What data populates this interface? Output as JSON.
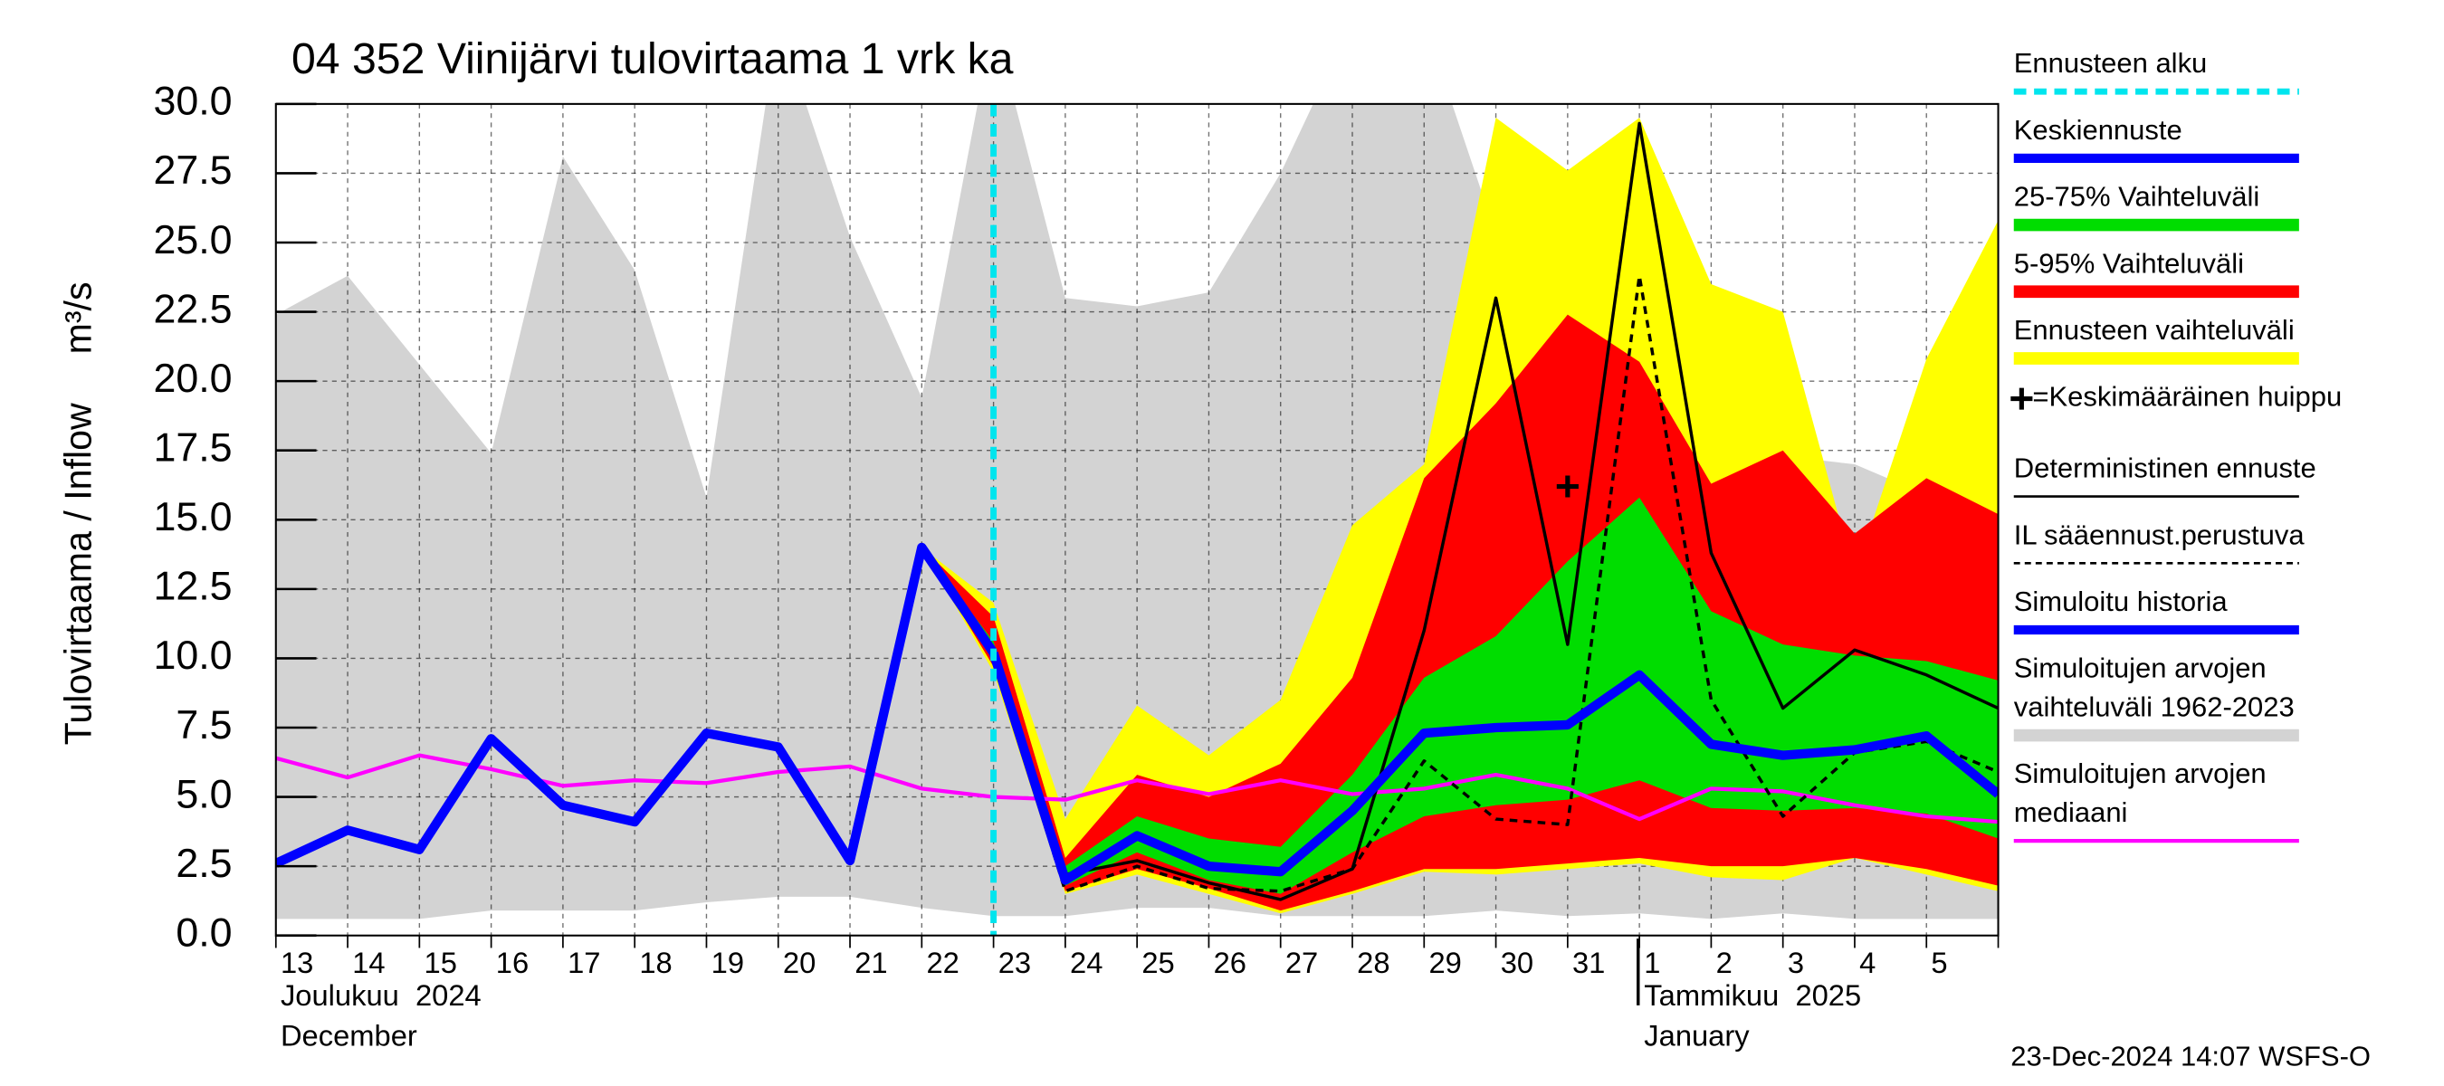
{
  "chart_data": {
    "type": "line",
    "title": "04 352 Viinijärvi tulovirtaama 1 vrk ka",
    "y_label": "Tulovirtaama / Inflow",
    "y_unit": "m³/s",
    "month_labels": [
      {
        "category": "13",
        "lines": [
          "Joulukuu  2024",
          "December"
        ]
      },
      {
        "category": "1",
        "lines": [
          "Tammikuu  2025",
          "January"
        ]
      }
    ],
    "footer": "23-Dec-2024 14:07 WSFS-O",
    "categories": [
      "13",
      "14",
      "15",
      "16",
      "17",
      "18",
      "19",
      "20",
      "21",
      "22",
      "23",
      "24",
      "25",
      "26",
      "27",
      "28",
      "29",
      "30",
      "31",
      "1",
      "2",
      "3",
      "4",
      "5",
      null
    ],
    "ylim": [
      0,
      30
    ],
    "yticks": [
      {
        "value": 0,
        "label": "0.0"
      },
      {
        "value": 2.5,
        "label": "2.5"
      },
      {
        "value": 5,
        "label": "5.0"
      },
      {
        "value": 7.5,
        "label": "7.5"
      },
      {
        "value": 10,
        "label": "10.0"
      },
      {
        "value": 12.5,
        "label": "12.5"
      },
      {
        "value": 15,
        "label": "15.0"
      },
      {
        "value": 17.5,
        "label": "17.5"
      },
      {
        "value": 20,
        "label": "20.0"
      },
      {
        "value": 22.5,
        "label": "22.5"
      },
      {
        "value": 25,
        "label": "25.0"
      },
      {
        "value": 27.5,
        "label": "27.5"
      },
      {
        "value": 30,
        "label": "30.0"
      }
    ],
    "grid": true,
    "forecast_start": {
      "name": "Ennusteen alku",
      "color": "#00e5ee",
      "category": "23"
    },
    "series": [
      {
        "name": "Simuloitujen arvojen vaihteluväli 1962-2023",
        "kind": "band",
        "color": "#d3d3d3",
        "legend_order": 9,
        "lower": [
          0.6,
          0.6,
          0.6,
          0.9,
          0.9,
          0.9,
          1.2,
          1.4,
          1.4,
          1.0,
          0.7,
          0.7,
          1.0,
          1.0,
          0.7,
          0.7,
          0.7,
          0.9,
          0.7,
          0.8,
          0.6,
          0.8,
          0.6,
          0.6,
          0.6
        ],
        "upper": [
          22.4,
          23.8,
          20.6,
          17.4,
          28.1,
          24.0,
          15.8,
          33,
          25.2,
          19.4,
          33,
          23.0,
          22.7,
          23.2,
          27.5,
          33,
          33,
          25.3,
          26.0,
          25.2,
          20.8,
          17.3,
          17.0,
          15.9,
          17.6
        ]
      },
      {
        "name": "Ennusteen vaihteluväli",
        "kind": "band",
        "color": "#ffff00",
        "legend_order": 4,
        "lower": [
          null,
          null,
          null,
          null,
          null,
          null,
          null,
          null,
          null,
          14.0,
          9.5,
          1.5,
          2.2,
          1.5,
          0.8,
          1.5,
          2.3,
          2.2,
          2.4,
          2.6,
          2.1,
          2.0,
          2.8,
          2.2,
          1.6
        ],
        "upper": [
          null,
          null,
          null,
          null,
          null,
          null,
          null,
          null,
          null,
          14.0,
          12.0,
          4.2,
          8.3,
          6.5,
          8.5,
          14.8,
          17.0,
          29.5,
          27.6,
          29.5,
          23.5,
          22.5,
          13.0,
          20.8,
          25.8
        ]
      },
      {
        "name": "5-95% Vaihteluväli",
        "kind": "band",
        "color": "#ff0000",
        "legend_order": 3,
        "lower": [
          null,
          null,
          null,
          null,
          null,
          null,
          null,
          null,
          null,
          14.0,
          9.7,
          1.6,
          2.4,
          1.7,
          0.9,
          1.6,
          2.4,
          2.4,
          2.6,
          2.8,
          2.5,
          2.5,
          2.8,
          2.4,
          1.8
        ],
        "upper": [
          null,
          null,
          null,
          null,
          null,
          null,
          null,
          null,
          null,
          14.0,
          11.5,
          2.8,
          5.8,
          5.0,
          6.2,
          9.3,
          16.5,
          19.2,
          22.4,
          20.7,
          16.3,
          17.5,
          14.5,
          16.5,
          15.2
        ]
      },
      {
        "name": "25-75% Vaihteluväli",
        "kind": "band",
        "color": "#00dd00",
        "legend_order": 2,
        "lower": [
          null,
          null,
          null,
          null,
          null,
          null,
          null,
          null,
          null,
          14.0,
          10.0,
          1.8,
          3.0,
          2.0,
          1.5,
          3.0,
          4.3,
          4.7,
          4.9,
          5.6,
          4.6,
          4.5,
          4.6,
          4.4,
          3.5
        ],
        "upper": [
          null,
          null,
          null,
          null,
          null,
          null,
          null,
          null,
          null,
          14.0,
          10.6,
          2.5,
          4.3,
          3.5,
          3.2,
          5.8,
          9.3,
          10.8,
          13.5,
          15.8,
          11.7,
          10.5,
          10.1,
          9.9,
          9.2
        ]
      },
      {
        "name": "Simuloitujen arvojen mediaani",
        "kind": "line",
        "color": "#ff00ff",
        "width": 2.5,
        "legend_order": 10,
        "values": [
          6.4,
          5.7,
          6.5,
          6.0,
          5.4,
          5.6,
          5.5,
          5.9,
          6.1,
          5.3,
          5.0,
          4.9,
          5.6,
          5.1,
          5.6,
          5.1,
          5.3,
          5.8,
          5.3,
          4.2,
          5.3,
          5.2,
          4.7,
          4.3,
          4.1
        ]
      },
      {
        "name": "Deterministinen ennuste",
        "kind": "line",
        "color": "#000000",
        "width": 2,
        "legend_order": 6,
        "values": [
          null,
          null,
          null,
          null,
          null,
          null,
          null,
          null,
          null,
          14.0,
          10.0,
          2.2,
          2.7,
          1.9,
          1.3,
          2.4,
          11.0,
          23.0,
          10.5,
          29.3,
          13.8,
          8.2,
          10.3,
          9.4,
          8.2
        ]
      },
      {
        "name": "IL sääennust.perustuva",
        "kind": "line",
        "color": "#000000",
        "width": 2,
        "dash": true,
        "legend_order": 7,
        "values": [
          null,
          null,
          null,
          null,
          null,
          null,
          null,
          null,
          null,
          14.0,
          10.0,
          1.6,
          2.5,
          1.7,
          1.6,
          2.4,
          6.3,
          4.2,
          4.0,
          23.8,
          8.5,
          4.3,
          6.6,
          7.0,
          5.9
        ]
      },
      {
        "name": "Simuloitu historia",
        "kind": "line",
        "color": "#0000ff",
        "width": 6,
        "legend_order": 8,
        "values": [
          2.6,
          3.8,
          3.1,
          7.1,
          4.7,
          4.1,
          7.3,
          6.8,
          2.7,
          14.0,
          10.2,
          null,
          null,
          null,
          null,
          null,
          null,
          null,
          null,
          null,
          null,
          null,
          null,
          null,
          null
        ]
      },
      {
        "name": "Keskiennuste",
        "kind": "line",
        "color": "#0000ff",
        "width": 6,
        "legend_order": 1,
        "values": [
          null,
          null,
          null,
          null,
          null,
          null,
          null,
          null,
          null,
          null,
          10.2,
          2.0,
          3.6,
          2.5,
          2.3,
          4.5,
          7.3,
          7.5,
          7.6,
          9.4,
          6.9,
          6.5,
          6.7,
          7.2,
          5.1
        ]
      },
      {
        "name": "=Keskimääräinen huippu",
        "kind": "marker",
        "color": "#000000",
        "legend_order": 5,
        "values": [
          null,
          null,
          null,
          null,
          null,
          null,
          null,
          null,
          null,
          null,
          null,
          null,
          null,
          null,
          null,
          null,
          null,
          null,
          16.2,
          null,
          null,
          null,
          null,
          null,
          null
        ]
      }
    ]
  }
}
